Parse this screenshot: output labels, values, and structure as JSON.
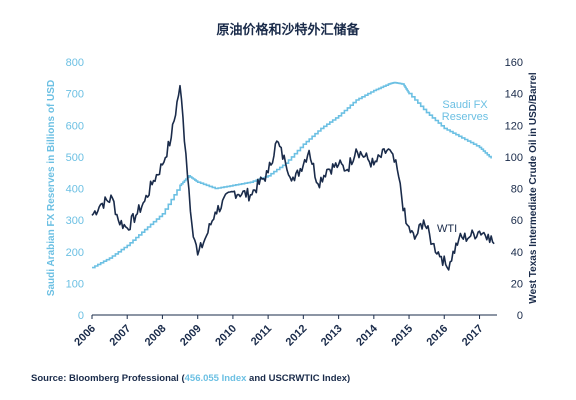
{
  "chart_data": {
    "type": "line",
    "title": "原油价格和沙特外汇储备",
    "xlabel": "",
    "x_ticks": [
      "2006",
      "2007",
      "2008",
      "2009",
      "2010",
      "2011",
      "2012",
      "2013",
      "2014",
      "2015",
      "2016",
      "2017"
    ],
    "xlim": [
      "2006-01-01",
      "2017-07-01"
    ],
    "ylabel_left": "Saudi Arabian FX Reserves in Billions of USD",
    "ylabel_right": "West Texas Intermediate Crude Oil in USD/Barrel",
    "ylim_left": [
      0,
      800
    ],
    "ylim_right": [
      0,
      160
    ],
    "yticks_left": [
      "0",
      "100",
      "200",
      "300",
      "400",
      "500",
      "600",
      "700",
      "800"
    ],
    "yticks_right": [
      "0",
      "20",
      "40",
      "60",
      "80",
      "100",
      "120",
      "140",
      "160"
    ],
    "grid": false,
    "colors": {
      "saudi_fx": "#6cc0e3",
      "wti": "#1a2b4a"
    },
    "series": [
      {
        "name": "Saudi FX Reserves",
        "axis": "left",
        "x": [
          "2006-01-01",
          "2006-07-01",
          "2007-01-01",
          "2007-07-01",
          "2008-01-01",
          "2008-07-01",
          "2008-10-01",
          "2009-01-01",
          "2009-07-01",
          "2010-01-01",
          "2010-07-01",
          "2011-01-01",
          "2011-07-01",
          "2012-01-01",
          "2012-07-01",
          "2013-01-01",
          "2013-07-01",
          "2014-01-01",
          "2014-06-01",
          "2014-08-01",
          "2014-11-01",
          "2015-01-01",
          "2015-07-01",
          "2016-01-01",
          "2016-07-01",
          "2017-01-01",
          "2017-05-01"
        ],
        "values": [
          150,
          180,
          220,
          270,
          320,
          410,
          440,
          420,
          400,
          410,
          420,
          440,
          480,
          540,
          590,
          630,
          680,
          710,
          730,
          735,
          730,
          700,
          640,
          590,
          560,
          530,
          495
        ]
      },
      {
        "name": "WTI",
        "axis": "right",
        "x": [
          "2006-01-01",
          "2006-04-01",
          "2006-08-01",
          "2006-10-01",
          "2007-01-01",
          "2007-04-01",
          "2007-07-01",
          "2007-10-01",
          "2008-01-01",
          "2008-04-01",
          "2008-07-01",
          "2008-09-01",
          "2008-11-01",
          "2009-01-01",
          "2009-04-01",
          "2009-07-01",
          "2010-01-01",
          "2010-07-01",
          "2011-01-01",
          "2011-04-01",
          "2011-07-01",
          "2011-10-01",
          "2012-03-01",
          "2012-06-01",
          "2012-09-01",
          "2013-01-01",
          "2013-04-01",
          "2013-07-01",
          "2014-01-01",
          "2014-06-01",
          "2014-09-01",
          "2014-12-01",
          "2015-03-01",
          "2015-06-01",
          "2015-09-01",
          "2015-12-01",
          "2016-02-01",
          "2016-06-01",
          "2016-10-01",
          "2017-01-01",
          "2017-04-01",
          "2017-06-01"
        ],
        "values": [
          63,
          70,
          74,
          60,
          55,
          63,
          72,
          85,
          95,
          112,
          145,
          102,
          58,
          38,
          50,
          65,
          78,
          76,
          90,
          110,
          96,
          85,
          104,
          83,
          92,
          95,
          92,
          105,
          95,
          105,
          92,
          58,
          48,
          60,
          45,
          37,
          30,
          48,
          50,
          53,
          51,
          45
        ]
      }
    ],
    "annotations": [
      {
        "text": "Saudi  FX\nReserves",
        "series": "Saudi FX Reserves"
      },
      {
        "text": "WTI",
        "series": "WTI"
      }
    ]
  },
  "source": {
    "prefix": "Source: Bloomberg Professional (",
    "highlight": "456.055 Index",
    "suffix": " and USCRWTIC Index)"
  }
}
